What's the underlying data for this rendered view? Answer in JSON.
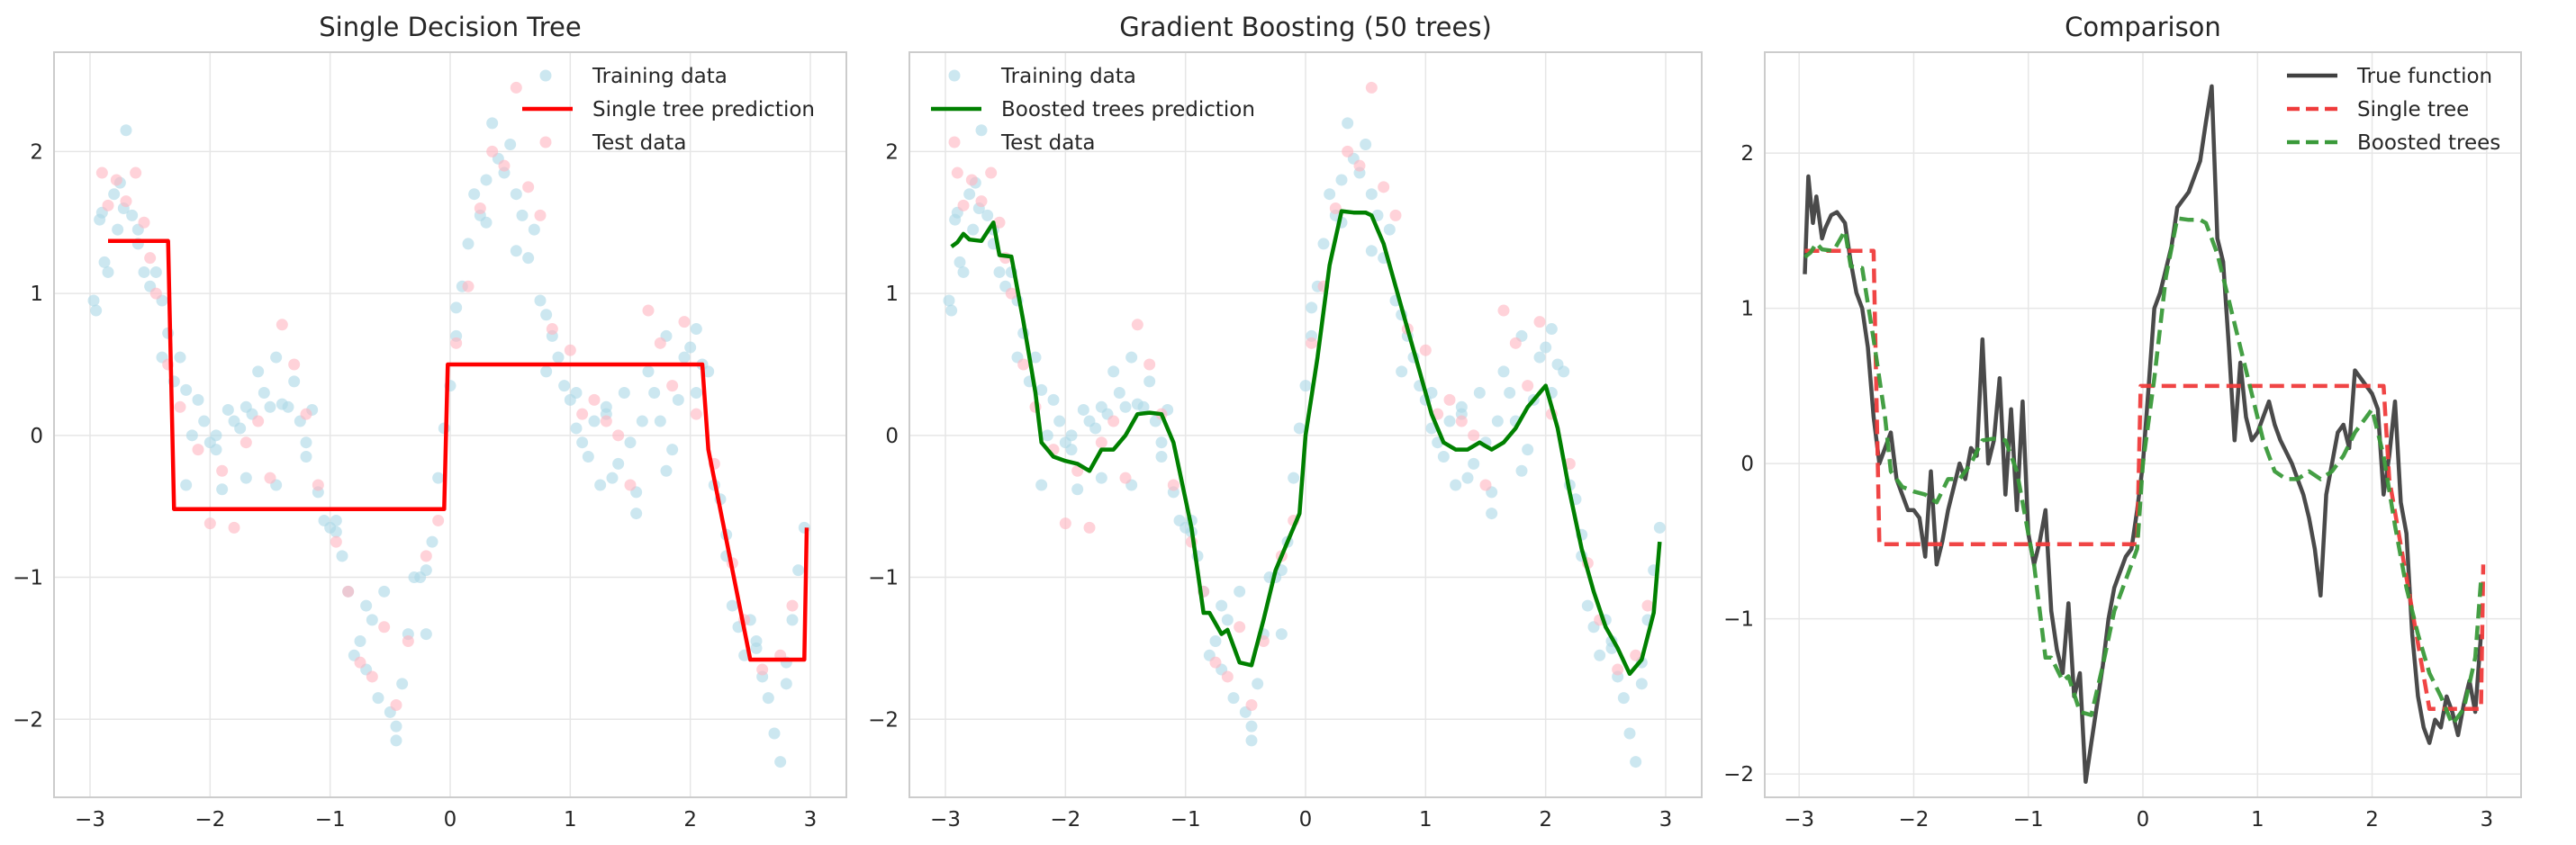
{
  "chart_data": [
    {
      "type": "scatter",
      "title": "Single Decision Tree",
      "xlabel": "",
      "ylabel": "",
      "xlim": [
        -3.3,
        3.3
      ],
      "ylim": [
        -2.55,
        2.7
      ],
      "xticks": [
        -3,
        -2,
        -1,
        0,
        1,
        2,
        3
      ],
      "yticks": [
        -2,
        -1,
        0,
        1,
        2
      ],
      "xtick_labels": [
        "−3",
        "−2",
        "−1",
        "0",
        "1",
        "2",
        "3"
      ],
      "ytick_labels": [
        "−2",
        "−1",
        "0",
        "1",
        "2"
      ],
      "grid": true,
      "legend_position": "top-right",
      "legend": [
        {
          "label": "Training data",
          "marker": "circle",
          "color": "#add8e6"
        },
        {
          "label": "Single tree prediction",
          "marker": "line",
          "color": "#ff0000"
        },
        {
          "label": "Test data",
          "marker": "circle",
          "color": "#ffb6c1"
        }
      ],
      "series_ref": "training,test",
      "line": {
        "name": "Single tree prediction",
        "color": "#ff0000",
        "style": "solid",
        "x": [
          -2.85,
          -2.35,
          -2.3,
          -0.05,
          -0.02,
          2.1,
          2.15,
          2.5,
          2.95,
          2.97
        ],
        "y": [
          1.37,
          1.37,
          -0.52,
          -0.52,
          0.5,
          0.5,
          -0.1,
          -1.58,
          -1.58,
          -0.65
        ]
      }
    },
    {
      "type": "scatter",
      "title": "Gradient Boosting (50 trees)",
      "xlabel": "",
      "ylabel": "",
      "xlim": [
        -3.3,
        3.3
      ],
      "ylim": [
        -2.55,
        2.7
      ],
      "xticks": [
        -3,
        -2,
        -1,
        0,
        1,
        2,
        3
      ],
      "yticks": [
        -2,
        -1,
        0,
        1,
        2
      ],
      "xtick_labels": [
        "−3",
        "−2",
        "−1",
        "0",
        "1",
        "2",
        "3"
      ],
      "ytick_labels": [
        "−2",
        "−1",
        "0",
        "1",
        "2"
      ],
      "grid": true,
      "legend_position": "top-left",
      "legend": [
        {
          "label": "Training data",
          "marker": "circle",
          "color": "#add8e6"
        },
        {
          "label": "Boosted trees prediction",
          "marker": "line",
          "color": "#008000"
        },
        {
          "label": "Test data",
          "marker": "circle",
          "color": "#ffb6c1"
        }
      ],
      "series_ref": "training,test",
      "line": {
        "name": "Boosted trees prediction",
        "color": "#008000",
        "style": "solid",
        "x": [
          -2.95,
          -2.9,
          -2.85,
          -2.8,
          -2.7,
          -2.6,
          -2.55,
          -2.45,
          -2.35,
          -2.25,
          -2.2,
          -2.1,
          -2.0,
          -1.9,
          -1.8,
          -1.7,
          -1.6,
          -1.5,
          -1.4,
          -1.3,
          -1.2,
          -1.1,
          -1.0,
          -0.95,
          -0.85,
          -0.8,
          -0.7,
          -0.65,
          -0.55,
          -0.45,
          -0.35,
          -0.25,
          -0.15,
          -0.05,
          0.0,
          0.1,
          0.2,
          0.3,
          0.4,
          0.5,
          0.55,
          0.65,
          0.75,
          0.85,
          0.95,
          1.05,
          1.15,
          1.25,
          1.35,
          1.45,
          1.55,
          1.65,
          1.75,
          1.85,
          1.95,
          2.0,
          2.1,
          2.2,
          2.3,
          2.4,
          2.5,
          2.6,
          2.7,
          2.8,
          2.9,
          2.95
        ],
        "y": [
          1.33,
          1.36,
          1.42,
          1.38,
          1.37,
          1.5,
          1.27,
          1.26,
          0.8,
          0.3,
          -0.05,
          -0.15,
          -0.18,
          -0.2,
          -0.25,
          -0.1,
          -0.1,
          0.0,
          0.15,
          0.16,
          0.15,
          -0.05,
          -0.45,
          -0.65,
          -1.25,
          -1.25,
          -1.4,
          -1.37,
          -1.6,
          -1.62,
          -1.3,
          -0.95,
          -0.75,
          -0.55,
          0.0,
          0.55,
          1.2,
          1.58,
          1.57,
          1.57,
          1.55,
          1.35,
          1.05,
          0.75,
          0.45,
          0.15,
          -0.05,
          -0.1,
          -0.1,
          -0.05,
          -0.1,
          -0.05,
          0.05,
          0.2,
          0.3,
          0.35,
          0.05,
          -0.4,
          -0.8,
          -1.1,
          -1.35,
          -1.5,
          -1.68,
          -1.58,
          -1.25,
          -0.75
        ]
      }
    },
    {
      "type": "line",
      "title": "Comparison",
      "xlabel": "",
      "ylabel": "",
      "xlim": [
        -3.3,
        3.3
      ],
      "ylim": [
        -2.15,
        2.65
      ],
      "xticks": [
        -3,
        -2,
        -1,
        0,
        1,
        2,
        3
      ],
      "yticks": [
        -2,
        -1,
        0,
        1,
        2
      ],
      "xtick_labels": [
        "−3",
        "−2",
        "−1",
        "0",
        "1",
        "2",
        "3"
      ],
      "ytick_labels": [
        "−2",
        "−1",
        "0",
        "1",
        "2"
      ],
      "grid": true,
      "legend_position": "top-right",
      "legend": [
        {
          "label": "True function",
          "marker": "line",
          "color": "#404040",
          "style": "solid"
        },
        {
          "label": "Single tree",
          "marker": "line",
          "color": "#ef3b3b",
          "style": "dashed"
        },
        {
          "label": "Boosted trees",
          "marker": "line",
          "color": "#3a9a3a",
          "style": "dashed"
        }
      ],
      "series": [
        {
          "name": "True function",
          "color": "#404040",
          "style": "solid",
          "x": [
            -2.95,
            -2.92,
            -2.88,
            -2.85,
            -2.8,
            -2.77,
            -2.72,
            -2.67,
            -2.6,
            -2.55,
            -2.5,
            -2.45,
            -2.4,
            -2.35,
            -2.3,
            -2.25,
            -2.2,
            -2.15,
            -2.1,
            -2.05,
            -2.0,
            -1.95,
            -1.9,
            -1.85,
            -1.8,
            -1.75,
            -1.7,
            -1.6,
            -1.55,
            -1.5,
            -1.45,
            -1.4,
            -1.35,
            -1.3,
            -1.25,
            -1.2,
            -1.15,
            -1.1,
            -1.05,
            -1.0,
            -0.95,
            -0.9,
            -0.85,
            -0.8,
            -0.75,
            -0.7,
            -0.65,
            -0.6,
            -0.55,
            -0.5,
            -0.45,
            -0.4,
            -0.35,
            -0.3,
            -0.25,
            -0.2,
            -0.15,
            -0.1,
            -0.05,
            0.0,
            0.05,
            0.1,
            0.15,
            0.2,
            0.25,
            0.3,
            0.35,
            0.4,
            0.45,
            0.5,
            0.55,
            0.6,
            0.65,
            0.7,
            0.75,
            0.8,
            0.85,
            0.9,
            0.95,
            1.0,
            1.05,
            1.1,
            1.15,
            1.2,
            1.3,
            1.35,
            1.4,
            1.45,
            1.5,
            1.55,
            1.6,
            1.65,
            1.7,
            1.75,
            1.8,
            1.85,
            1.9,
            1.95,
            2.0,
            2.05,
            2.1,
            2.15,
            2.2,
            2.25,
            2.3,
            2.35,
            2.4,
            2.45,
            2.5,
            2.55,
            2.6,
            2.65,
            2.7,
            2.75,
            2.8,
            2.85,
            2.9,
            2.95
          ],
          "y": [
            1.22,
            1.85,
            1.55,
            1.72,
            1.45,
            1.52,
            1.6,
            1.62,
            1.55,
            1.3,
            1.1,
            1.0,
            0.75,
            0.3,
            0.0,
            0.1,
            0.2,
            -0.1,
            -0.2,
            -0.3,
            -0.3,
            -0.35,
            -0.6,
            -0.05,
            -0.65,
            -0.5,
            -0.3,
            0.0,
            -0.1,
            0.1,
            0.05,
            0.8,
            0.0,
            0.15,
            0.55,
            -0.2,
            0.35,
            -0.3,
            0.4,
            -0.45,
            -0.65,
            -0.5,
            -0.3,
            -0.95,
            -1.2,
            -1.35,
            -0.9,
            -1.5,
            -1.35,
            -2.05,
            -1.8,
            -1.55,
            -1.3,
            -1.0,
            -0.8,
            -0.7,
            -0.6,
            -0.55,
            -0.3,
            0.0,
            0.5,
            1.0,
            1.1,
            1.25,
            1.4,
            1.65,
            1.7,
            1.75,
            1.85,
            1.95,
            2.2,
            2.43,
            1.45,
            1.3,
            0.75,
            0.15,
            0.65,
            0.3,
            0.15,
            0.2,
            0.3,
            0.4,
            0.25,
            0.15,
            0.0,
            -0.1,
            -0.2,
            -0.35,
            -0.55,
            -0.85,
            -0.2,
            0.0,
            0.2,
            0.25,
            0.1,
            0.6,
            0.55,
            0.5,
            0.45,
            0.35,
            -0.2,
            0.05,
            0.4,
            -0.25,
            -0.45,
            -1.1,
            -1.5,
            -1.7,
            -1.8,
            -1.65,
            -1.7,
            -1.5,
            -1.6,
            -1.75,
            -1.55,
            -1.4,
            -1.6,
            -1.1
          ]
        },
        {
          "name": "Single tree",
          "color": "#ef3b3b",
          "style": "dashed",
          "x": [
            -2.95,
            -2.35,
            -2.3,
            -0.05,
            -0.02,
            2.1,
            2.15,
            2.5,
            2.95,
            2.97
          ],
          "y": [
            1.37,
            1.37,
            -0.52,
            -0.52,
            0.5,
            0.5,
            -0.1,
            -1.58,
            -1.58,
            -0.65
          ]
        },
        {
          "name": "Boosted trees",
          "color": "#3a9a3a",
          "style": "dashed",
          "x": [
            -2.95,
            -2.9,
            -2.85,
            -2.8,
            -2.7,
            -2.6,
            -2.55,
            -2.45,
            -2.35,
            -2.25,
            -2.2,
            -2.1,
            -2.0,
            -1.9,
            -1.8,
            -1.7,
            -1.6,
            -1.5,
            -1.4,
            -1.3,
            -1.2,
            -1.1,
            -1.0,
            -0.95,
            -0.85,
            -0.8,
            -0.7,
            -0.65,
            -0.55,
            -0.45,
            -0.35,
            -0.25,
            -0.15,
            -0.05,
            0.0,
            0.1,
            0.2,
            0.3,
            0.4,
            0.5,
            0.55,
            0.65,
            0.75,
            0.85,
            0.95,
            1.05,
            1.15,
            1.25,
            1.35,
            1.45,
            1.55,
            1.65,
            1.75,
            1.85,
            1.95,
            2.0,
            2.1,
            2.2,
            2.3,
            2.4,
            2.5,
            2.6,
            2.7,
            2.8,
            2.9,
            2.95
          ],
          "y": [
            1.33,
            1.36,
            1.42,
            1.38,
            1.37,
            1.5,
            1.27,
            1.26,
            0.8,
            0.3,
            -0.05,
            -0.15,
            -0.18,
            -0.2,
            -0.25,
            -0.1,
            -0.1,
            0.0,
            0.15,
            0.16,
            0.15,
            -0.05,
            -0.45,
            -0.65,
            -1.25,
            -1.25,
            -1.4,
            -1.37,
            -1.6,
            -1.62,
            -1.3,
            -0.95,
            -0.75,
            -0.55,
            0.0,
            0.55,
            1.2,
            1.58,
            1.57,
            1.57,
            1.55,
            1.35,
            1.05,
            0.75,
            0.45,
            0.15,
            -0.05,
            -0.1,
            -0.1,
            -0.05,
            -0.1,
            -0.05,
            0.05,
            0.2,
            0.3,
            0.35,
            0.05,
            -0.4,
            -0.8,
            -1.1,
            -1.35,
            -1.5,
            -1.68,
            -1.58,
            -1.25,
            -0.75
          ]
        }
      ]
    }
  ],
  "scatter_series": {
    "training": {
      "name": "Training data",
      "color": "#add8e6",
      "x": [
        -2.97,
        -2.95,
        -2.9,
        -2.88,
        -2.85,
        -2.8,
        -2.77,
        -2.72,
        -2.7,
        -2.65,
        -2.6,
        -2.55,
        -2.5,
        -2.45,
        -2.4,
        -2.35,
        -2.3,
        -2.25,
        -2.2,
        -2.15,
        -2.1,
        -2.05,
        -2.0,
        -1.95,
        -1.9,
        -1.85,
        -1.8,
        -1.75,
        -1.7,
        -1.65,
        -1.6,
        -1.55,
        -1.5,
        -1.45,
        -1.4,
        -1.35,
        -1.3,
        -1.25,
        -1.2,
        -1.15,
        -1.1,
        -1.05,
        -1.0,
        -0.95,
        -0.9,
        -0.85,
        -0.8,
        -0.75,
        -0.7,
        -0.65,
        -0.6,
        -0.55,
        -0.5,
        -0.45,
        -0.4,
        -0.35,
        -0.3,
        -0.25,
        -0.2,
        -0.15,
        -0.1,
        -0.05,
        0.0,
        0.05,
        0.1,
        0.15,
        0.2,
        0.25,
        0.3,
        0.35,
        0.4,
        0.45,
        0.5,
        0.55,
        0.6,
        0.65,
        0.7,
        0.75,
        0.8,
        0.85,
        0.9,
        0.95,
        1.0,
        1.05,
        1.1,
        1.15,
        1.2,
        1.25,
        1.3,
        1.35,
        1.4,
        1.45,
        1.5,
        1.55,
        1.6,
        1.65,
        1.7,
        1.75,
        1.8,
        1.85,
        1.9,
        1.95,
        2.0,
        2.05,
        2.1,
        2.15,
        2.2,
        2.25,
        2.3,
        2.35,
        2.4,
        2.45,
        2.5,
        2.55,
        2.6,
        2.65,
        2.7,
        2.75,
        2.8,
        2.85,
        2.9,
        2.95,
        -2.92,
        -2.75,
        -2.6,
        -2.4,
        -2.2,
        -1.95,
        -1.7,
        -1.45,
        -1.2,
        -0.95,
        -0.7,
        -0.45,
        -0.2,
        0.05,
        0.3,
        0.55,
        0.8,
        1.05,
        1.3,
        1.55,
        1.8,
        2.05,
        2.3,
        2.55,
        2.8
      ],
      "y": [
        0.95,
        0.88,
        1.57,
        1.22,
        1.15,
        1.7,
        1.45,
        1.6,
        2.15,
        1.55,
        1.35,
        1.15,
        1.05,
        1.15,
        0.95,
        0.72,
        0.38,
        0.55,
        0.32,
        0.0,
        0.25,
        0.1,
        -0.05,
        0.0,
        -0.38,
        0.18,
        0.1,
        0.05,
        -0.3,
        0.15,
        0.45,
        0.3,
        0.2,
        0.55,
        0.22,
        0.2,
        0.38,
        0.1,
        -0.05,
        0.18,
        -0.4,
        -0.6,
        -0.65,
        -0.68,
        -0.85,
        -1.1,
        -1.55,
        -1.45,
        -1.65,
        -1.3,
        -1.85,
        -1.1,
        -1.95,
        -2.05,
        -1.75,
        -1.4,
        -1.0,
        -1.0,
        -0.95,
        -0.75,
        -0.3,
        0.05,
        0.35,
        0.7,
        1.05,
        1.35,
        1.7,
        1.55,
        1.8,
        2.2,
        1.95,
        1.85,
        2.05,
        1.7,
        1.55,
        1.25,
        1.45,
        0.95,
        0.85,
        0.7,
        0.55,
        0.35,
        0.25,
        0.3,
        -0.05,
        -0.15,
        0.1,
        -0.35,
        0.15,
        -0.3,
        -0.2,
        0.3,
        -0.05,
        -0.4,
        0.1,
        0.45,
        0.3,
        0.1,
        -0.25,
        -0.1,
        0.25,
        0.55,
        0.62,
        0.75,
        0.5,
        0.45,
        -0.35,
        -0.45,
        -0.85,
        -1.2,
        -1.35,
        -1.55,
        -1.3,
        -1.45,
        -1.7,
        -1.85,
        -2.1,
        -2.3,
        -1.6,
        -1.3,
        -0.95,
        -0.65,
        1.52,
        1.78,
        1.45,
        0.55,
        -0.35,
        -0.1,
        0.2,
        -0.35,
        -0.15,
        -0.6,
        -1.2,
        -2.15,
        -1.4,
        0.9,
        1.5,
        1.3,
        0.45,
        0.05,
        0.2,
        -0.55,
        0.7,
        0.3,
        -0.7,
        -1.5,
        -1.75
      ]
    },
    "test": {
      "name": "Test data",
      "color": "#ffb6c1",
      "x": [
        -2.9,
        -2.85,
        -2.78,
        -2.7,
        -2.62,
        -2.55,
        -2.5,
        -2.45,
        -2.35,
        -2.25,
        -2.1,
        -2.0,
        -1.9,
        -1.8,
        -1.7,
        -1.6,
        -1.5,
        -1.4,
        -1.3,
        -1.2,
        -1.1,
        -0.95,
        -0.85,
        -0.75,
        -0.65,
        -0.55,
        -0.45,
        -0.35,
        -0.2,
        -0.1,
        0.05,
        0.15,
        0.25,
        0.35,
        0.45,
        0.55,
        0.65,
        0.75,
        0.85,
        1.0,
        1.1,
        1.2,
        1.3,
        1.4,
        1.5,
        1.65,
        1.75,
        1.85,
        1.95,
        2.05,
        2.2,
        2.35,
        2.45,
        2.6,
        2.75,
        2.85
      ],
      "y": [
        1.85,
        1.62,
        1.8,
        1.65,
        1.85,
        1.5,
        1.25,
        1.0,
        0.5,
        0.2,
        -0.1,
        -0.62,
        -0.25,
        -0.65,
        -0.05,
        0.1,
        -0.3,
        0.78,
        0.5,
        0.15,
        -0.35,
        -0.75,
        -1.1,
        -1.6,
        -1.7,
        -1.35,
        -1.9,
        -1.45,
        -0.85,
        -0.6,
        0.65,
        1.05,
        1.6,
        2.0,
        1.9,
        2.45,
        1.75,
        1.55,
        0.75,
        0.6,
        0.15,
        0.25,
        0.1,
        0.0,
        -0.35,
        0.88,
        0.65,
        0.35,
        0.8,
        0.15,
        -0.2,
        -0.9,
        -1.3,
        -1.65,
        -1.55,
        -1.2
      ]
    }
  }
}
